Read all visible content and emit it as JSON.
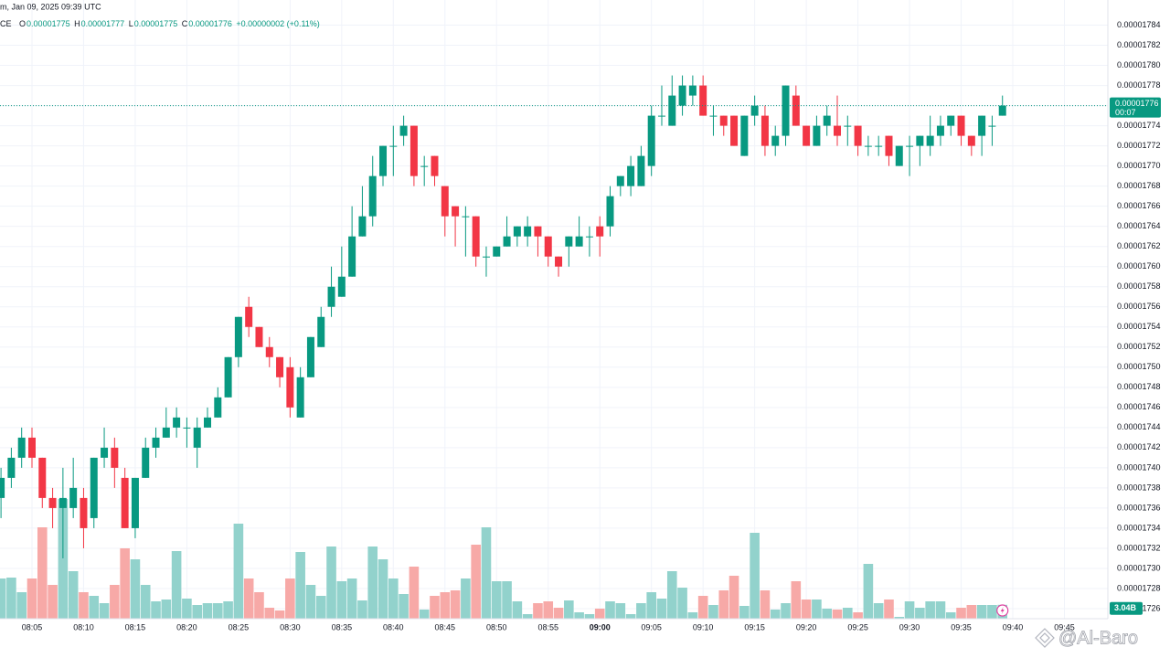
{
  "header": {
    "title": "m, Jan 09, 2025 09:39 UTC",
    "symbol": "CE",
    "o_label": "O",
    "o": "0.00001775",
    "h_label": "H",
    "h": "0.00001777",
    "l_label": "L",
    "l": "0.00001775",
    "c_label": "C",
    "c": "0.00001776",
    "change": "+0.00000002 (+0.11%)"
  },
  "chart_data": {
    "type": "candlestick",
    "categories": [
      null,
      null,
      null,
      "08:05",
      null,
      null,
      null,
      null,
      "08:10",
      null,
      null,
      null,
      null,
      "08:15",
      null,
      null,
      null,
      null,
      "08:20",
      null,
      null,
      null,
      null,
      "08:25",
      null,
      null,
      null,
      null,
      "08:30",
      null,
      null,
      null,
      null,
      "08:35",
      null,
      null,
      null,
      null,
      "08:40",
      null,
      null,
      null,
      null,
      "08:45",
      null,
      null,
      null,
      null,
      "08:50",
      null,
      null,
      null,
      null,
      "08:55",
      null,
      null,
      null,
      null,
      "09:00",
      null,
      null,
      null,
      null,
      "09:05",
      null,
      null,
      null,
      null,
      "09:10",
      null,
      null,
      null,
      null,
      "09:15",
      null,
      null,
      null,
      null,
      "09:20",
      null,
      null,
      null,
      null,
      "09:25",
      null,
      null,
      null,
      null,
      "09:30",
      null,
      null,
      null,
      null,
      "09:35",
      null,
      null,
      null,
      null,
      "09:40",
      null,
      null,
      null,
      null,
      "09:45",
      null,
      null
    ],
    "open": [
      1.737e-05,
      1.739e-05,
      1.741e-05,
      1.743e-05,
      1.741e-05,
      1.737e-05,
      1.736e-05,
      1.736e-05,
      1.737e-05,
      1.735e-05,
      1.741e-05,
      1.742e-05,
      1.739e-05,
      1.734e-05,
      1.739e-05,
      1.742e-05,
      1.743e-05,
      1.744e-05,
      1.744e-05,
      1.742e-05,
      1.744e-05,
      1.745e-05,
      1.747e-05,
      1.751e-05,
      1.756e-05,
      1.754e-05,
      1.752e-05,
      1.751e-05,
      1.75e-05,
      1.745e-05,
      1.749e-05,
      1.752e-05,
      1.756e-05,
      1.757e-05,
      1.759e-05,
      1.763e-05,
      1.765e-05,
      1.769e-05,
      1.772e-05,
      1.773e-05,
      1.774e-05,
      1.77e-05,
      1.771e-05,
      1.768e-05,
      1.766e-05,
      1.765e-05,
      1.765e-05,
      1.761e-05,
      1.761e-05,
      1.762e-05,
      1.763e-05,
      1.763e-05,
      1.764e-05,
      1.763e-05,
      1.761e-05,
      1.762e-05,
      1.762e-05,
      1.763e-05,
      1.764e-05,
      1.764e-05,
      1.768e-05,
      1.768e-05,
      1.768e-05,
      1.77e-05,
      1.775e-05,
      1.774e-05,
      1.776e-05,
      1.777e-05,
      1.778e-05,
      1.775e-05,
      1.775e-05,
      1.775e-05,
      1.771e-05,
      1.775e-05,
      1.775e-05,
      1.772e-05,
      1.773e-05,
      1.777e-05,
      1.774e-05,
      1.772e-05,
      1.774e-05,
      1.774e-05,
      1.774e-05,
      1.774e-05,
      1.772e-05,
      1.772e-05,
      1.773e-05,
      1.77e-05,
      1.772e-05,
      1.772e-05,
      1.772e-05,
      1.773e-05,
      1.774e-05,
      1.775e-05,
      1.773e-05,
      1.773e-05,
      1.774e-05,
      1.775e-05,
      null,
      null,
      null,
      null,
      null,
      null,
      null,
      null
    ],
    "high": [
      1.74e-05,
      1.742e-05,
      1.744e-05,
      1.744e-05,
      1.741e-05,
      1.738e-05,
      1.74e-05,
      1.741e-05,
      1.738e-05,
      1.741e-05,
      1.744e-05,
      1.743e-05,
      1.74e-05,
      1.739e-05,
      1.743e-05,
      1.744e-05,
      1.746e-05,
      1.746e-05,
      1.745e-05,
      1.745e-05,
      1.746e-05,
      1.748e-05,
      1.751e-05,
      1.755e-05,
      1.757e-05,
      1.754e-05,
      1.753e-05,
      1.751e-05,
      1.751e-05,
      1.75e-05,
      1.753e-05,
      1.756e-05,
      1.76e-05,
      1.762e-05,
      1.766e-05,
      1.768e-05,
      1.771e-05,
      1.772e-05,
      1.774e-05,
      1.775e-05,
      1.774e-05,
      1.771e-05,
      1.771e-05,
      1.768e-05,
      1.766e-05,
      1.766e-05,
      1.765e-05,
      1.762e-05,
      1.762e-05,
      1.765e-05,
      1.764e-05,
      1.765e-05,
      1.764e-05,
      1.763e-05,
      1.761e-05,
      1.763e-05,
      1.765e-05,
      1.764e-05,
      1.765e-05,
      1.768e-05,
      1.769e-05,
      1.771e-05,
      1.772e-05,
      1.776e-05,
      1.778e-05,
      1.779e-05,
      1.779e-05,
      1.779e-05,
      1.779e-05,
      1.776e-05,
      1.775e-05,
      1.775e-05,
      1.775e-05,
      1.777e-05,
      1.776e-05,
      1.774e-05,
      1.778e-05,
      1.778e-05,
      1.774e-05,
      1.775e-05,
      1.776e-05,
      1.777e-05,
      1.775e-05,
      1.774e-05,
      1.773e-05,
      1.773e-05,
      1.773e-05,
      1.772e-05,
      1.773e-05,
      1.773e-05,
      1.775e-05,
      1.775e-05,
      1.775e-05,
      1.775e-05,
      1.773e-05,
      1.775e-05,
      1.775e-05,
      1.777e-05,
      null,
      null,
      null,
      null,
      null,
      null,
      null,
      null
    ],
    "low": [
      1.735e-05,
      1.738e-05,
      1.74e-05,
      1.74e-05,
      1.736e-05,
      1.734e-05,
      1.731e-05,
      1.735e-05,
      1.732e-05,
      1.734e-05,
      1.74e-05,
      1.738e-05,
      1.734e-05,
      1.733e-05,
      1.739e-05,
      1.741e-05,
      1.743e-05,
      1.743e-05,
      1.742e-05,
      1.74e-05,
      1.744e-05,
      1.745e-05,
      1.747e-05,
      1.75e-05,
      1.753e-05,
      1.752e-05,
      1.75e-05,
      1.748e-05,
      1.745e-05,
      1.745e-05,
      1.749e-05,
      1.752e-05,
      1.755e-05,
      1.757e-05,
      1.759e-05,
      1.763e-05,
      1.764e-05,
      1.768e-05,
      1.769e-05,
      1.772e-05,
      1.768e-05,
      1.768e-05,
      1.768e-05,
      1.763e-05,
      1.762e-05,
      1.761e-05,
      1.76e-05,
      1.759e-05,
      1.761e-05,
      1.762e-05,
      1.762e-05,
      1.762e-05,
      1.761e-05,
      1.76e-05,
      1.759e-05,
      1.76e-05,
      1.762e-05,
      1.761e-05,
      1.761e-05,
      1.763e-05,
      1.767e-05,
      1.767e-05,
      1.768e-05,
      1.769e-05,
      1.774e-05,
      1.774e-05,
      1.775e-05,
      1.776e-05,
      1.775e-05,
      1.773e-05,
      1.773e-05,
      1.772e-05,
      1.771e-05,
      1.774e-05,
      1.771e-05,
      1.771e-05,
      1.772e-05,
      1.774e-05,
      1.772e-05,
      1.772e-05,
      1.773e-05,
      1.772e-05,
      1.772e-05,
      1.771e-05,
      1.771e-05,
      1.771e-05,
      1.77e-05,
      1.77e-05,
      1.769e-05,
      1.77e-05,
      1.771e-05,
      1.772e-05,
      1.773e-05,
      1.772e-05,
      1.771e-05,
      1.771e-05,
      1.772e-05,
      1.775e-05,
      null,
      null,
      null,
      null,
      null,
      null,
      null,
      null
    ],
    "close": [
      1.739e-05,
      1.741e-05,
      1.743e-05,
      1.741e-05,
      1.737e-05,
      1.736e-05,
      1.737e-05,
      1.738e-05,
      1.734e-05,
      1.741e-05,
      1.742e-05,
      1.74e-05,
      1.734e-05,
      1.739e-05,
      1.742e-05,
      1.743e-05,
      1.744e-05,
      1.745e-05,
      1.744e-05,
      1.744e-05,
      1.745e-05,
      1.747e-05,
      1.751e-05,
      1.755e-05,
      1.754e-05,
      1.752e-05,
      1.751e-05,
      1.749e-05,
      1.746e-05,
      1.749e-05,
      1.753e-05,
      1.755e-05,
      1.758e-05,
      1.759e-05,
      1.763e-05,
      1.765e-05,
      1.769e-05,
      1.772e-05,
      1.772e-05,
      1.774e-05,
      1.769e-05,
      1.77e-05,
      1.769e-05,
      1.765e-05,
      1.765e-05,
      1.765e-05,
      1.761e-05,
      1.761e-05,
      1.762e-05,
      1.763e-05,
      1.764e-05,
      1.764e-05,
      1.763e-05,
      1.761e-05,
      1.76e-05,
      1.763e-05,
      1.763e-05,
      1.763e-05,
      1.763e-05,
      1.767e-05,
      1.769e-05,
      1.77e-05,
      1.771e-05,
      1.775e-05,
      1.775e-05,
      1.777e-05,
      1.778e-05,
      1.778e-05,
      1.775e-05,
      1.775e-05,
      1.774e-05,
      1.772e-05,
      1.775e-05,
      1.776e-05,
      1.772e-05,
      1.773e-05,
      1.778e-05,
      1.774e-05,
      1.772e-05,
      1.774e-05,
      1.775e-05,
      1.773e-05,
      1.774e-05,
      1.772e-05,
      1.772e-05,
      1.772e-05,
      1.771e-05,
      1.772e-05,
      1.772e-05,
      1.773e-05,
      1.773e-05,
      1.774e-05,
      1.775e-05,
      1.773e-05,
      1.772e-05,
      1.775e-05,
      1.774e-05,
      1.776e-05,
      null,
      null,
      null,
      null,
      null,
      null,
      null,
      null
    ],
    "up_color": "#089981",
    "down_color": "#f23645",
    "ylim": [
      1.725e-05,
      1.7865e-05
    ],
    "yticks": [
      {
        "value": 1.726e-05,
        "label": "0.00001726"
      },
      {
        "value": 1.728e-05,
        "label": "0.00001728"
      },
      {
        "value": 1.73e-05,
        "label": "0.00001730"
      },
      {
        "value": 1.732e-05,
        "label": "0.00001732"
      },
      {
        "value": 1.734e-05,
        "label": "0.00001734"
      },
      {
        "value": 1.736e-05,
        "label": "0.00001736"
      },
      {
        "value": 1.738e-05,
        "label": "0.00001738"
      },
      {
        "value": 1.74e-05,
        "label": "0.00001740"
      },
      {
        "value": 1.742e-05,
        "label": "0.00001742"
      },
      {
        "value": 1.744e-05,
        "label": "0.00001744"
      },
      {
        "value": 1.746e-05,
        "label": "0.00001746"
      },
      {
        "value": 1.748e-05,
        "label": "0.00001748"
      },
      {
        "value": 1.75e-05,
        "label": "0.00001750"
      },
      {
        "value": 1.752e-05,
        "label": "0.00001752"
      },
      {
        "value": 1.754e-05,
        "label": "0.00001754"
      },
      {
        "value": 1.756e-05,
        "label": "0.00001756"
      },
      {
        "value": 1.758e-05,
        "label": "0.00001758"
      },
      {
        "value": 1.76e-05,
        "label": "0.00001760"
      },
      {
        "value": 1.762e-05,
        "label": "0.00001762"
      },
      {
        "value": 1.764e-05,
        "label": "0.00001764"
      },
      {
        "value": 1.766e-05,
        "label": "0.00001766"
      },
      {
        "value": 1.768e-05,
        "label": "0.00001768"
      },
      {
        "value": 1.77e-05,
        "label": "0.00001770"
      },
      {
        "value": 1.772e-05,
        "label": "0.00001772"
      },
      {
        "value": 1.774e-05,
        "label": "0.00001774"
      },
      {
        "value": 1.776e-05,
        "label": "0.00001776"
      },
      {
        "value": 1.778e-05,
        "label": "0.00001778"
      },
      {
        "value": 1.78e-05,
        "label": "0.00001780"
      },
      {
        "value": 1.782e-05,
        "label": "0.00001782"
      },
      {
        "value": 1.784e-05,
        "label": "0.00001784"
      }
    ],
    "grid": true,
    "last_price": {
      "value": 1.776e-05,
      "label": "0.00001776"
    },
    "countdown": "00:07",
    "volume": {
      "values": [
        8.8,
        9,
        5.8,
        8.8,
        20,
        7.4,
        26.2,
        10.4,
        5.8,
        5,
        3.4,
        7.4,
        15.4,
        13,
        7.4,
        3.8,
        4.2,
        14.8,
        4.4,
        3,
        3.4,
        3.4,
        3.8,
        20.8,
        8.8,
        5.8,
        2.4,
        1.8,
        8.8,
        14.6,
        7.4,
        5,
        15.8,
        8.2,
        8.8,
        4,
        15.8,
        13,
        8.8,
        5.4,
        11.4,
        2,
        5,
        5.8,
        6.2,
        8.8,
        16.2,
        20,
        8.2,
        8.2,
        3.8,
        1,
        3.4,
        3.8,
        2.4,
        4,
        1.4,
        1,
        2.2,
        3.8,
        3.4,
        1,
        3.4,
        5.8,
        4.4,
        10.4,
        6.8,
        1.4,
        5,
        3,
        6.2,
        9.4,
        2.8,
        18.8,
        6.2,
        2,
        3.4,
        8.2,
        4.2,
        4.2,
        2.2,
        2,
        2.4,
        1.4,
        12,
        3.4,
        4.2,
        0.4,
        3.8,
        2.4,
        3.8,
        3.8,
        1.4,
        2.4,
        3,
        3,
        3,
        3.04,
        null,
        null,
        null,
        null,
        null,
        null,
        null,
        null
      ],
      "ylim": [
        0,
        40
      ],
      "value_label": "3.04B",
      "up_color": "#92d2cc",
      "down_color": "#f7a9a7"
    }
  },
  "watermark": "@Al-Baro"
}
